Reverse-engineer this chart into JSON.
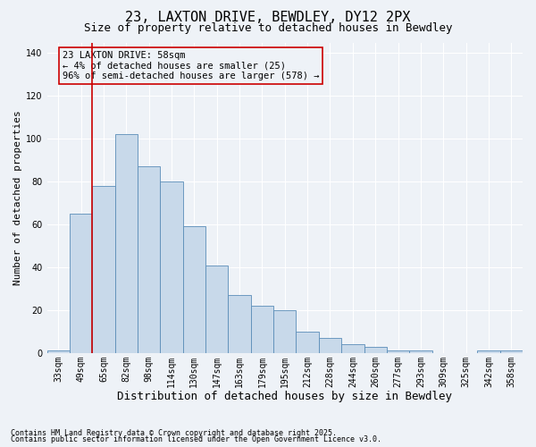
{
  "title1": "23, LAXTON DRIVE, BEWDLEY, DY12 2PX",
  "title2": "Size of property relative to detached houses in Bewdley",
  "xlabel": "Distribution of detached houses by size in Bewdley",
  "ylabel": "Number of detached properties",
  "categories": [
    "33sqm",
    "49sqm",
    "65sqm",
    "82sqm",
    "98sqm",
    "114sqm",
    "130sqm",
    "147sqm",
    "163sqm",
    "179sqm",
    "195sqm",
    "212sqm",
    "228sqm",
    "244sqm",
    "260sqm",
    "277sqm",
    "293sqm",
    "309sqm",
    "325sqm",
    "342sqm",
    "358sqm"
  ],
  "values": [
    1,
    65,
    78,
    102,
    87,
    80,
    59,
    41,
    27,
    22,
    20,
    10,
    7,
    4,
    3,
    1,
    1,
    0,
    0,
    1,
    1
  ],
  "bar_color": "#c8d9ea",
  "bar_edge_color": "#5b8db8",
  "vline_x_idx": 1,
  "vline_color": "#cc0000",
  "ylim": [
    0,
    145
  ],
  "yticks": [
    0,
    20,
    40,
    60,
    80,
    100,
    120,
    140
  ],
  "annotation_text": "23 LAXTON DRIVE: 58sqm\n← 4% of detached houses are smaller (25)\n96% of semi-detached houses are larger (578) →",
  "annotation_box_color": "#cc0000",
  "footnote1": "Contains HM Land Registry data © Crown copyright and database right 2025.",
  "footnote2": "Contains public sector information licensed under the Open Government Licence v3.0.",
  "background_color": "#eef2f7",
  "grid_color": "#ffffff",
  "title_fontsize": 11,
  "subtitle_fontsize": 9,
  "xlabel_fontsize": 9,
  "ylabel_fontsize": 8,
  "tick_fontsize": 7,
  "annotation_fontsize": 7.5,
  "footnote_fontsize": 6
}
